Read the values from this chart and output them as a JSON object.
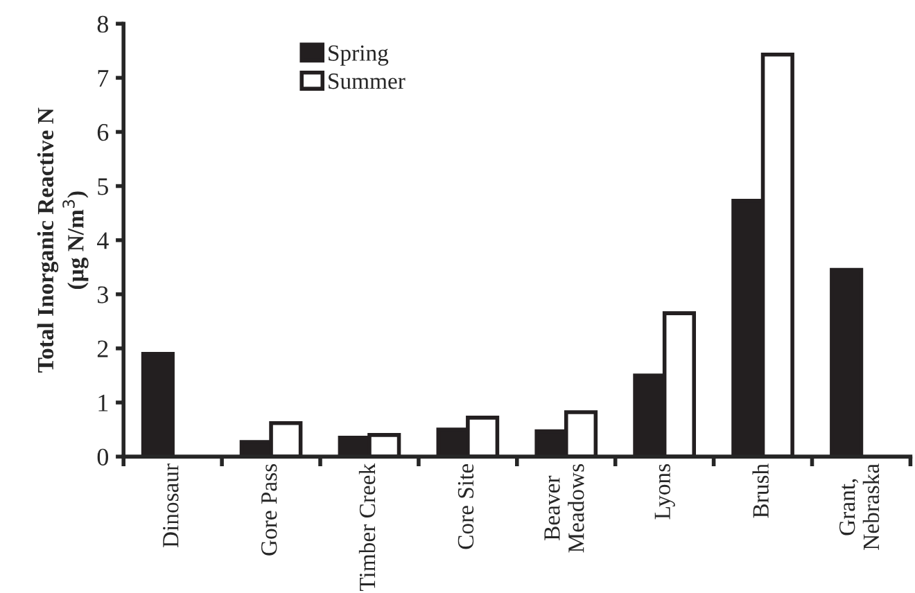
{
  "chart_data": {
    "type": "bar",
    "ylabel": "Total Inorganic Reactive N\n(µg N/m$^{3}$)",
    "categories": [
      "Dinosaur",
      "Gore Pass",
      "Timber Creek",
      "Core Site",
      "Beaver\nMeadows",
      "Lyons",
      "Brush",
      "Grant,\nNebraska"
    ],
    "series": [
      {
        "name": "Spring",
        "color": "#231f20",
        "values": [
          1.9,
          0.27,
          0.35,
          0.5,
          0.47,
          1.5,
          4.73,
          3.45
        ]
      },
      {
        "name": "Summer",
        "color": "#ffffff",
        "values": [
          null,
          0.62,
          0.4,
          0.72,
          0.82,
          2.65,
          7.43,
          null
        ]
      }
    ],
    "ylim": [
      0,
      8
    ],
    "yticks": [
      0,
      1,
      2,
      3,
      4,
      5,
      6,
      7,
      8
    ],
    "grid": false,
    "legend": "top left"
  }
}
